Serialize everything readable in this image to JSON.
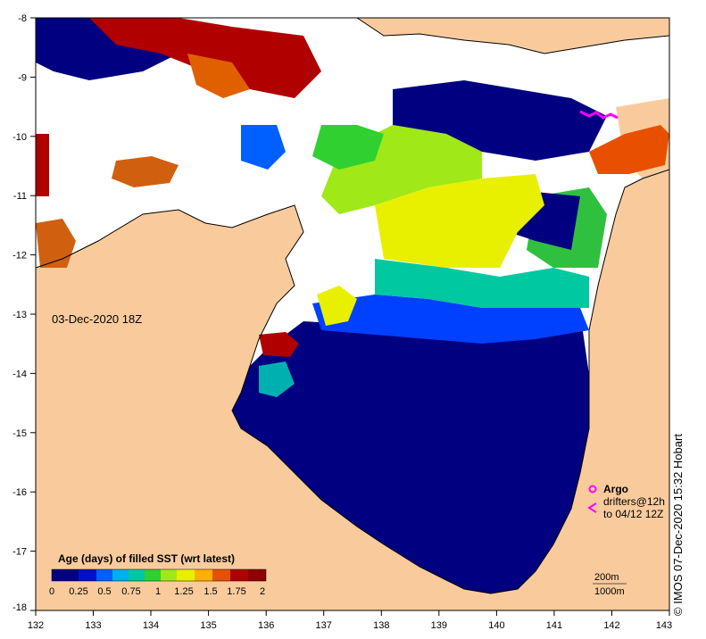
{
  "map": {
    "timestamp": "03-Dec-2020 18Z",
    "credit": "© IMOS 07-Dec-2020 15:32 Hobart",
    "colors": {
      "land": "#f9cb9c",
      "no_data": "#ffffff",
      "age_scale": [
        "#000080",
        "#0010c8",
        "#0060ff",
        "#00b0e8",
        "#00c8a0",
        "#30d030",
        "#a0e818",
        "#e8f000",
        "#ffb000",
        "#e85000",
        "#b00000",
        "#900000"
      ]
    },
    "x_axis": {
      "ticks": [
        "132",
        "133",
        "134",
        "135",
        "136",
        "137",
        "138",
        "139",
        "140",
        "141",
        "142",
        "143"
      ]
    },
    "y_axis": {
      "ticks": [
        "-8",
        "-9",
        "-10",
        "-11",
        "-12",
        "-13",
        "-14",
        "-15",
        "-16",
        "-17",
        "-18"
      ]
    }
  },
  "colorbar": {
    "title": "Age (days) of filled SST (wrt latest)",
    "ticks": [
      "0",
      "0.25",
      "0.5",
      "0.75",
      "1",
      "1.25",
      "1.5",
      "1.75",
      "2"
    ],
    "range": [
      0,
      2
    ]
  },
  "legend": {
    "argo_label": "Argo",
    "drifters_line1": "drifters@12h",
    "drifters_line2": "to 04/12 12Z",
    "argo_color": "#ff00ff",
    "depth_200": "200m",
    "depth_1000": "1000m"
  }
}
